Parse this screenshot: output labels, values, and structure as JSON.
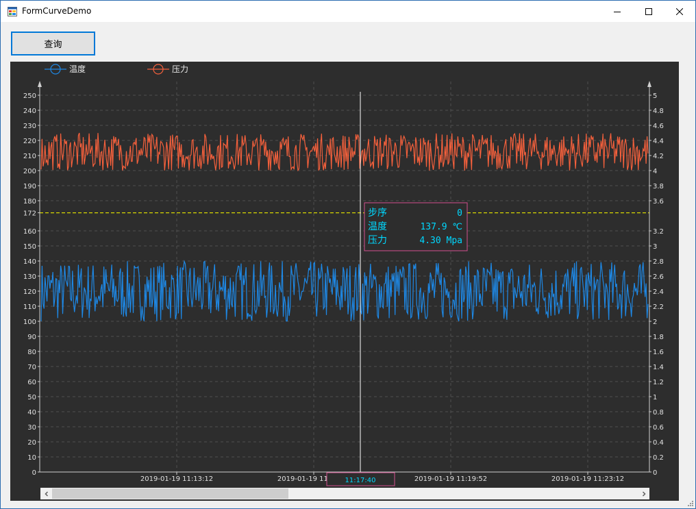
{
  "window": {
    "title": "FormCurveDemo",
    "controls": {
      "minimize": "minimize-icon",
      "maximize": "maximize-icon",
      "close": "close-icon"
    }
  },
  "toolbar": {
    "query_label": "查询"
  },
  "colors": {
    "background": "#2d2d2d",
    "temperature": "#1e88e5",
    "pressure": "#f4603c",
    "threshold": "#d6d600",
    "tooltip_border": "#d24f8f",
    "tooltip_text": "#00d8ff",
    "axis": "#d0d0d0",
    "grid": "#505050"
  },
  "tooltip": {
    "rows": [
      {
        "label": "步序",
        "value": "0"
      },
      {
        "label": "温度",
        "value": "137.9 ℃"
      },
      {
        "label": "压力",
        "value": "4.30 Mpa"
      }
    ]
  },
  "cursor": {
    "time_label": "11:17:40"
  },
  "chart_data": {
    "type": "line",
    "legend": {
      "position": "top-left",
      "entries": [
        "温度",
        "压力"
      ]
    },
    "grid": true,
    "y_left": {
      "range": [
        0,
        250
      ],
      "ticks": [
        "0",
        "10",
        "20",
        "30",
        "40",
        "50",
        "60",
        "70",
        "80",
        "90",
        "100",
        "110",
        "120",
        "130",
        "140",
        "150",
        "160",
        "172",
        "180",
        "190",
        "200",
        "210",
        "220",
        "230",
        "240",
        "250"
      ]
    },
    "y_right": {
      "range": [
        0,
        5
      ],
      "ticks": [
        "0",
        "0.2",
        "0.4",
        "0.6",
        "0.8",
        "1",
        "1.2",
        "1.4",
        "1.6",
        "1.8",
        "2",
        "2.2",
        "2.4",
        "2.6",
        "2.8",
        "3",
        "3.2",
        "3.6",
        "3.8",
        "4",
        "4.2",
        "4.4",
        "4.6",
        "4.8",
        "5"
      ]
    },
    "x_ticks": [
      "2019-01-19 11:13:12",
      "2019-01-19 11:16:32",
      "2019-01-19 11:19:52",
      "2019-01-19 11:23:12"
    ],
    "threshold_line": {
      "axis": "left",
      "value": 172
    },
    "series": [
      {
        "name": "温度",
        "axis": "left",
        "min": 100,
        "max": 140
      },
      {
        "name": "压力",
        "axis": "right",
        "min": 4.0,
        "max": 4.5
      }
    ]
  }
}
